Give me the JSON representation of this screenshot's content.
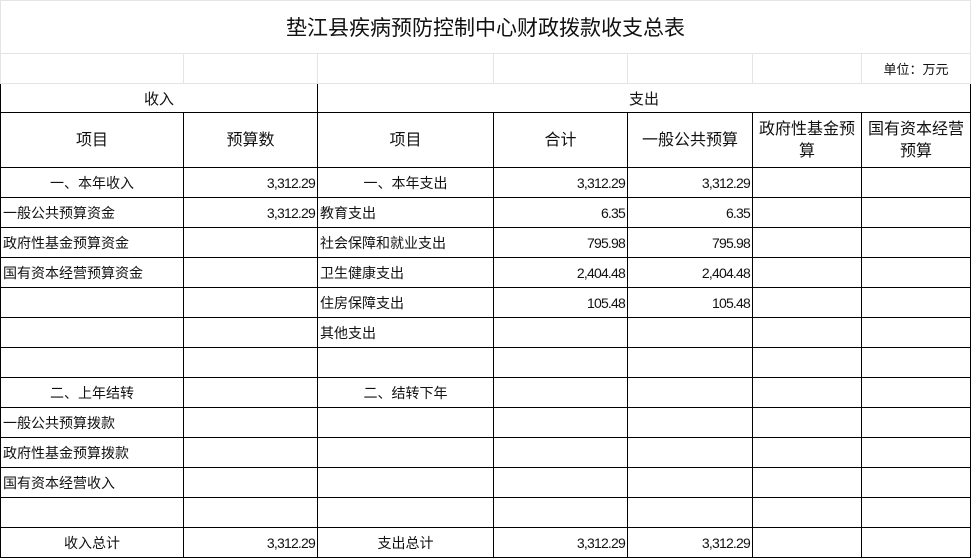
{
  "title": "垫江县疾病预防控制中心财政拨款收支总表",
  "unit": "单位：万元",
  "header": {
    "income": "收入",
    "expense": "支出",
    "columns": [
      "项目",
      "预算数",
      "项目",
      "合计",
      "一般公共预算",
      "政府性基金预算",
      "国有资本经营预算"
    ]
  },
  "rows": [
    [
      "一、本年收入",
      "3,312.29",
      "一、本年支出",
      "3,312.29",
      "3,312.29",
      "",
      ""
    ],
    [
      "一般公共预算资金",
      "3,312.29",
      "教育支出",
      "6.35",
      "6.35",
      "",
      ""
    ],
    [
      "政府性基金预算资金",
      "",
      "社会保障和就业支出",
      "795.98",
      "795.98",
      "",
      ""
    ],
    [
      "国有资本经营预算资金",
      "",
      "卫生健康支出",
      "2,404.48",
      "2,404.48",
      "",
      ""
    ],
    [
      "",
      "",
      "住房保障支出",
      "105.48",
      "105.48",
      "",
      ""
    ],
    [
      "",
      "",
      "其他支出",
      "",
      "",
      "",
      ""
    ],
    [
      "",
      "",
      "",
      "",
      "",
      "",
      ""
    ],
    [
      "二、上年结转",
      "",
      "二、结转下年",
      "",
      "",
      "",
      ""
    ],
    [
      "一般公共预算拨款",
      "",
      "",
      "",
      "",
      "",
      ""
    ],
    [
      "政府性基金预算拨款",
      "",
      "",
      "",
      "",
      "",
      ""
    ],
    [
      "国有资本经营收入",
      "",
      "",
      "",
      "",
      "",
      ""
    ],
    [
      "",
      "",
      "",
      "",
      "",
      "",
      ""
    ],
    [
      "收入总计",
      "3,312.29",
      "支出总计",
      "3,312.29",
      "3,312.29",
      "",
      ""
    ]
  ]
}
